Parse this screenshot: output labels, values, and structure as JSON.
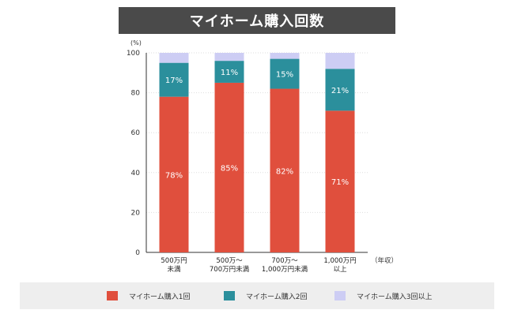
{
  "title": "マイホーム購入回数",
  "colors": {
    "once": "#e04f3d",
    "twice": "#2b8f9c",
    "three_plus": "#cdcdf4"
  },
  "chart_data": {
    "type": "bar",
    "stacked": true,
    "title": "マイホーム購入回数",
    "ylabel": "(%)",
    "xlabel": "（年収）",
    "ylim": [
      0,
      100
    ],
    "yticks": [
      0,
      20,
      40,
      60,
      80,
      100
    ],
    "categories": [
      [
        "500万円",
        "未満"
      ],
      [
        "500万～",
        "700万円未満"
      ],
      [
        "700万～",
        "1,000万円未満"
      ],
      [
        "1,000万円",
        "以上"
      ]
    ],
    "series": [
      {
        "name": "マイホーム購入1回",
        "values": [
          78,
          85,
          82,
          71
        ],
        "labels": [
          "78%",
          "85%",
          "82%",
          "71%"
        ]
      },
      {
        "name": "マイホーム購入2回",
        "values": [
          17,
          11,
          15,
          21
        ],
        "labels": [
          "17%",
          "11%",
          "15%",
          "21%"
        ]
      },
      {
        "name": "マイホーム購入3回以上",
        "values": [
          5,
          4,
          3,
          8
        ],
        "labels": [
          "",
          "",
          "",
          ""
        ]
      }
    ],
    "grid": true,
    "legend_position": "bottom"
  }
}
